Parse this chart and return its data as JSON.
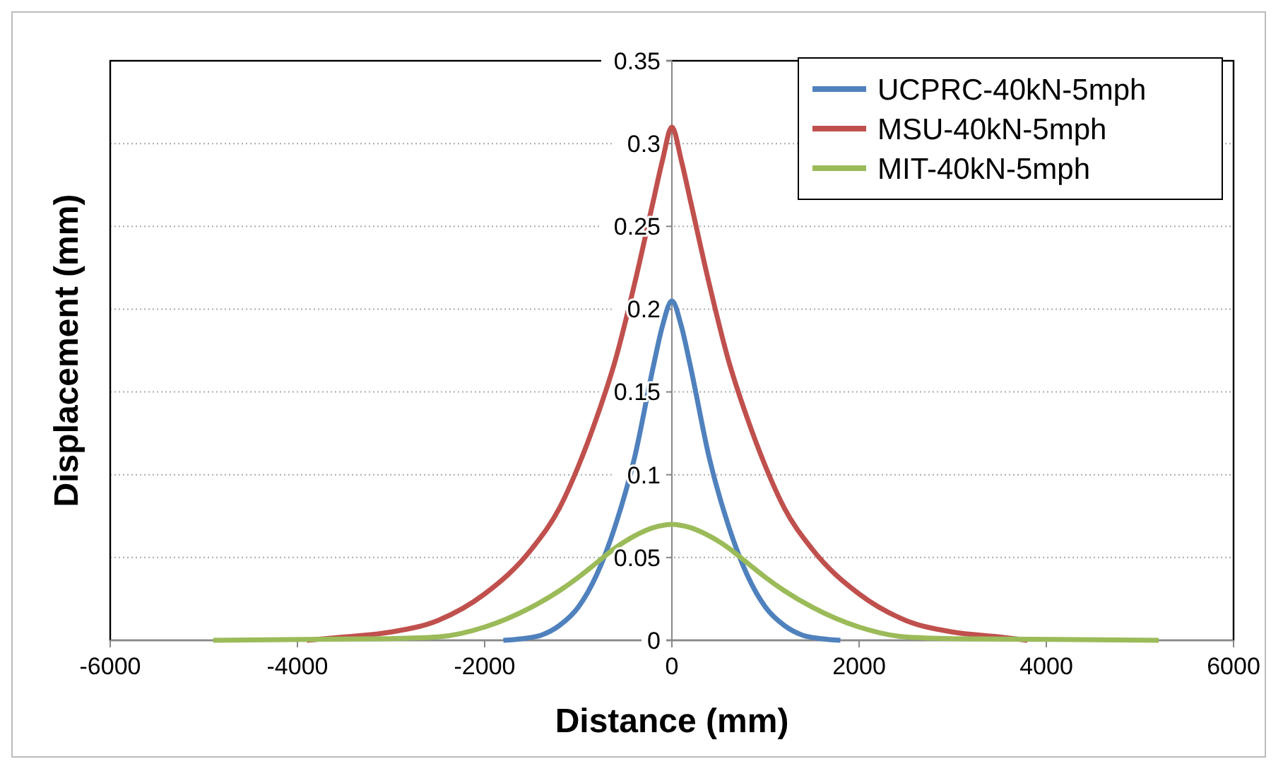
{
  "chart_data": {
    "type": "line",
    "xlabel": "Distance (mm)",
    "ylabel": "Displacement (mm)",
    "xlim": [
      -6000,
      6000
    ],
    "xticks": [
      -6000,
      -4000,
      -2000,
      0,
      2000,
      4000,
      6000
    ],
    "ylim": [
      0,
      0.35
    ],
    "yticks": [
      0,
      0.05,
      0.1,
      0.15,
      0.2,
      0.25,
      0.3,
      0.35
    ],
    "grid": "y",
    "legend": "top right",
    "marker": "none",
    "line_style": "solid",
    "series": [
      {
        "name": "UCPRC-40kN-5mph",
        "color": "#4f81bd",
        "x": [
          -1800,
          -1600,
          -1400,
          -1200,
          -1000,
          -800,
          -600,
          -400,
          -200,
          -100,
          0,
          100,
          200,
          400,
          600,
          800,
          1000,
          1200,
          1400,
          1600,
          1800
        ],
        "values": [
          0,
          0.001,
          0.003,
          0.009,
          0.02,
          0.04,
          0.07,
          0.11,
          0.165,
          0.19,
          0.205,
          0.19,
          0.165,
          0.11,
          0.07,
          0.04,
          0.02,
          0.009,
          0.003,
          0.001,
          0
        ]
      },
      {
        "name": "MSU-40kN-5mph",
        "color": "#c0504d",
        "x": [
          -3900,
          -3500,
          -3000,
          -2500,
          -2000,
          -1500,
          -1200,
          -1000,
          -800,
          -600,
          -400,
          -200,
          -100,
          0,
          100,
          200,
          400,
          600,
          800,
          1000,
          1200,
          1500,
          2000,
          2500,
          3000,
          3500,
          3800
        ],
        "values": [
          0,
          0.002,
          0.005,
          0.012,
          0.028,
          0.055,
          0.08,
          0.105,
          0.135,
          0.17,
          0.215,
          0.265,
          0.29,
          0.31,
          0.29,
          0.265,
          0.215,
          0.17,
          0.135,
          0.105,
          0.08,
          0.055,
          0.028,
          0.012,
          0.005,
          0.002,
          0
        ]
      },
      {
        "name": "MIT-40kN-5mph",
        "color": "#9bbb59",
        "x": [
          -4900,
          -3000,
          -2500,
          -2000,
          -1500,
          -1200,
          -1000,
          -800,
          -600,
          -400,
          -200,
          0,
          200,
          400,
          600,
          800,
          1000,
          1200,
          1500,
          2000,
          2500,
          3000,
          5200
        ],
        "values": [
          0,
          0.001,
          0.002,
          0.008,
          0.02,
          0.03,
          0.038,
          0.047,
          0.056,
          0.063,
          0.068,
          0.07,
          0.068,
          0.063,
          0.056,
          0.047,
          0.038,
          0.03,
          0.02,
          0.008,
          0.002,
          0.001,
          0
        ]
      }
    ]
  }
}
